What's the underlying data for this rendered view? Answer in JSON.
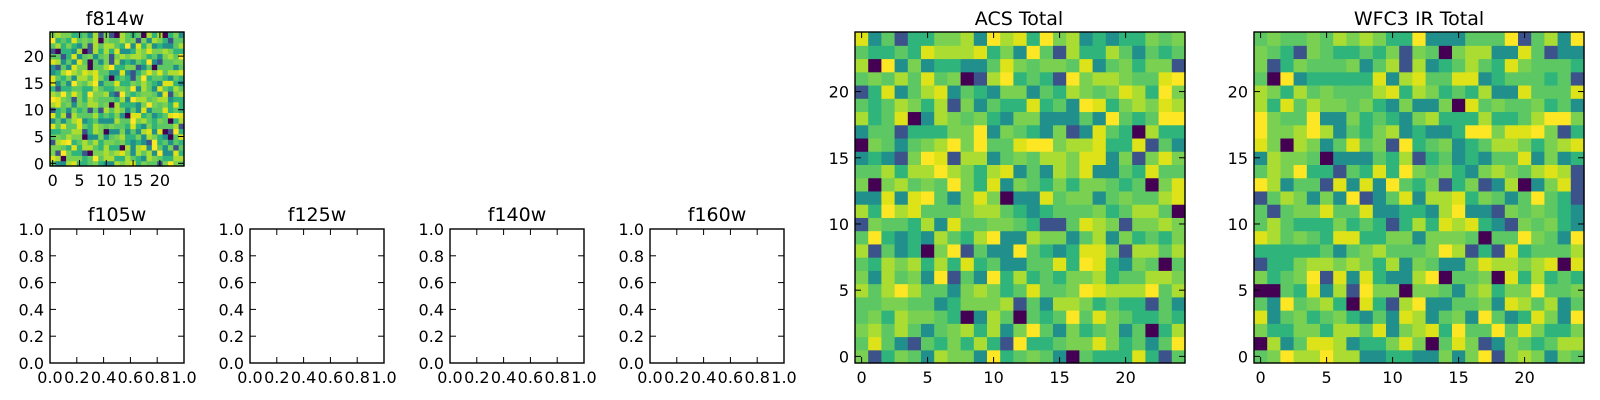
{
  "chart_data": [
    {
      "type": "heatmap",
      "title": "f814w",
      "xticks": [
        "0",
        "5",
        "10",
        "15",
        "20"
      ],
      "yticks": [
        "0",
        "5",
        "10",
        "15",
        "20"
      ],
      "xlim": [
        -0.5,
        24.5
      ],
      "ylim": [
        -0.5,
        24.5
      ],
      "grid": false,
      "colormap": "viridis",
      "image_size": [
        25,
        25
      ],
      "seed": 814
    },
    {
      "type": "scatter",
      "title": "f105w",
      "xticks": [
        "0.0",
        "0.2",
        "0.4",
        "0.6",
        "0.8",
        "1.0"
      ],
      "yticks": [
        "0.0",
        "0.2",
        "0.4",
        "0.6",
        "0.8",
        "1.0"
      ],
      "xlim": [
        0,
        1
      ],
      "ylim": [
        0,
        1
      ],
      "series": []
    },
    {
      "type": "scatter",
      "title": "f125w",
      "xticks": [
        "0.0",
        "0.2",
        "0.4",
        "0.6",
        "0.8",
        "1.0"
      ],
      "yticks": [
        "0.0",
        "0.2",
        "0.4",
        "0.6",
        "0.8",
        "1.0"
      ],
      "xlim": [
        0,
        1
      ],
      "ylim": [
        0,
        1
      ],
      "series": []
    },
    {
      "type": "scatter",
      "title": "f140w",
      "xticks": [
        "0.0",
        "0.2",
        "0.4",
        "0.6",
        "0.8",
        "1.0"
      ],
      "yticks": [
        "0.0",
        "0.2",
        "0.4",
        "0.6",
        "0.8",
        "1.0"
      ],
      "xlim": [
        0,
        1
      ],
      "ylim": [
        0,
        1
      ],
      "series": []
    },
    {
      "type": "scatter",
      "title": "f160w",
      "xticks": [
        "0.0",
        "0.2",
        "0.4",
        "0.6",
        "0.8",
        "1.0"
      ],
      "yticks": [
        "0.0",
        "0.2",
        "0.4",
        "0.6",
        "0.8",
        "1.0"
      ],
      "xlim": [
        0,
        1
      ],
      "ylim": [
        0,
        1
      ],
      "series": []
    },
    {
      "type": "heatmap",
      "title": "ACS Total",
      "xticks": [
        "0",
        "5",
        "10",
        "15",
        "20"
      ],
      "yticks": [
        "0",
        "5",
        "10",
        "15",
        "20"
      ],
      "xlim": [
        -0.5,
        24.5
      ],
      "ylim": [
        -0.5,
        24.5
      ],
      "grid": false,
      "colormap": "viridis",
      "image_size": [
        25,
        25
      ],
      "seed": 1001
    },
    {
      "type": "heatmap",
      "title": "WFC3 IR Total",
      "xticks": [
        "0",
        "5",
        "10",
        "15",
        "20"
      ],
      "yticks": [
        "0",
        "5",
        "10",
        "15",
        "20"
      ],
      "xlim": [
        -0.5,
        24.5
      ],
      "ylim": [
        -0.5,
        24.5
      ],
      "grid": false,
      "colormap": "viridis",
      "image_size": [
        25,
        25
      ],
      "seed": 3003
    }
  ],
  "palette": {
    "viridis": [
      "#440154",
      "#3b528b",
      "#21908d",
      "#2fb47c",
      "#5dc863",
      "#7ad151",
      "#aadc32",
      "#dde318",
      "#fde725"
    ]
  }
}
